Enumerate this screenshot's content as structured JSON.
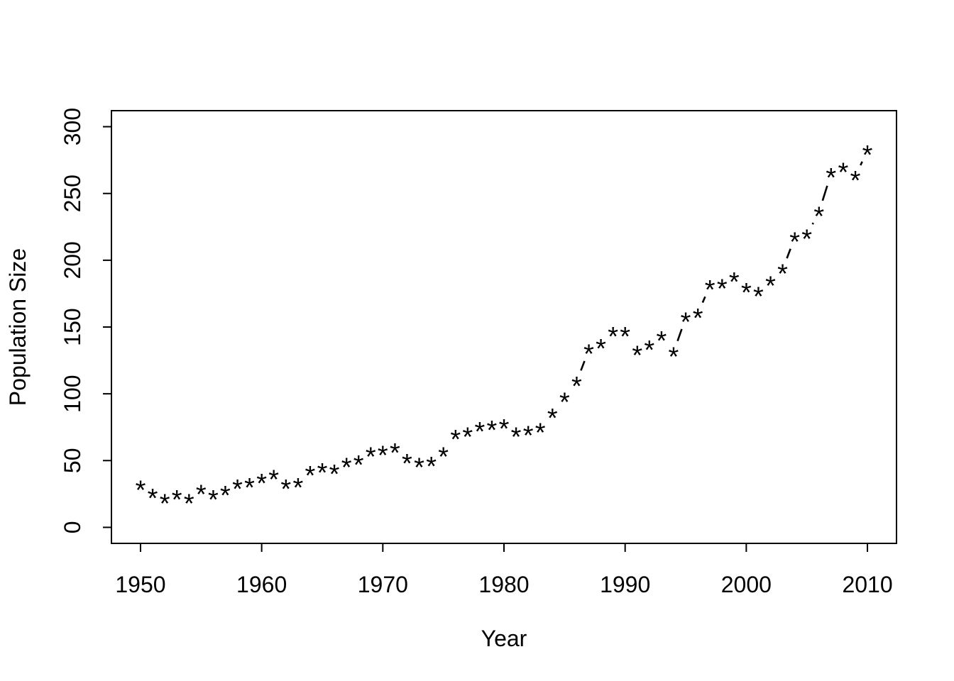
{
  "chart_data": {
    "type": "scatter",
    "subtype": "points-with-dashed-connectors",
    "title": "",
    "xlabel": "Year",
    "ylabel": "Population Size",
    "point_symbol": "*",
    "line_style": "dashed",
    "grid": false,
    "legend": null,
    "xlim": [
      1950,
      2010
    ],
    "ylim": [
      0,
      300
    ],
    "x_ticks": [
      1950,
      1960,
      1970,
      1980,
      1990,
      2000,
      2010
    ],
    "y_ticks": [
      0,
      50,
      100,
      150,
      200,
      250,
      300
    ],
    "colors": {
      "foreground": "#000000",
      "background": "#ffffff"
    },
    "x": [
      1950,
      1951,
      1952,
      1953,
      1954,
      1955,
      1956,
      1957,
      1958,
      1959,
      1960,
      1961,
      1962,
      1963,
      1964,
      1965,
      1966,
      1967,
      1968,
      1969,
      1970,
      1971,
      1972,
      1973,
      1974,
      1975,
      1976,
      1977,
      1978,
      1979,
      1980,
      1981,
      1982,
      1983,
      1984,
      1985,
      1986,
      1987,
      1988,
      1989,
      1990,
      1991,
      1992,
      1993,
      1994,
      1995,
      1996,
      1997,
      1998,
      1999,
      2000,
      2001,
      2002,
      2003,
      2004,
      2005,
      2006,
      2007,
      2008,
      2009,
      2010
    ],
    "y": [
      31,
      25,
      21,
      24,
      21,
      28,
      24,
      27,
      32,
      33,
      36,
      39,
      32,
      33,
      42,
      44,
      43,
      48,
      50,
      56,
      57,
      59,
      51,
      48,
      49,
      56,
      69,
      71,
      75,
      76,
      77,
      71,
      72,
      74,
      85,
      97,
      109,
      133,
      137,
      146,
      146,
      132,
      136,
      143,
      131,
      157,
      160,
      181,
      182,
      187,
      179,
      176,
      184,
      193,
      217,
      219,
      236,
      265,
      269,
      263,
      282
    ]
  }
}
